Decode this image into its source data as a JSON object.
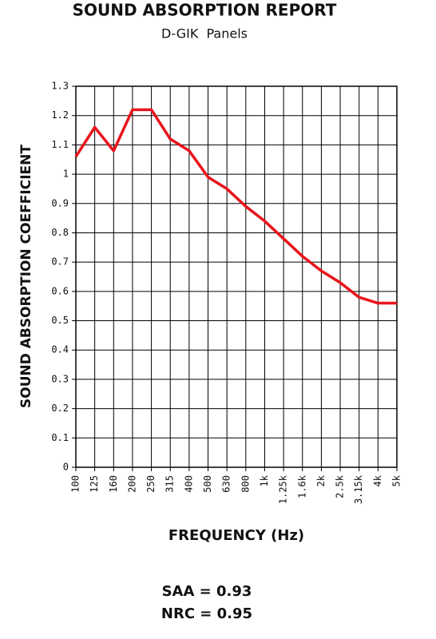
{
  "chart_data": {
    "type": "line",
    "title": "SOUND ABSORPTION REPORT",
    "subtitle": "D-GIK  Panels",
    "x_label": "FREQUENCY (Hz)",
    "y_label": "SOUND ABSORPTION COEFFICIENT",
    "categories": [
      "100",
      "125",
      "160",
      "200",
      "250",
      "315",
      "400",
      "500",
      "630",
      "800",
      "1k",
      "1.25k",
      "1.6k",
      "2k",
      "2.5k",
      "3.15k",
      "4k",
      "5k"
    ],
    "values": [
      1.06,
      1.16,
      1.08,
      1.22,
      1.22,
      1.12,
      1.08,
      0.99,
      0.95,
      0.89,
      0.84,
      0.78,
      0.72,
      0.67,
      0.63,
      0.58,
      0.56,
      0.56
    ],
    "color": "#e8141c",
    "ylim": [
      0,
      1.3
    ],
    "yticks": [
      0,
      0.1,
      0.2,
      0.3,
      0.4,
      0.5,
      0.6,
      0.7,
      0.8,
      0.9,
      1,
      1.1,
      1.2,
      1.3
    ],
    "grid": true,
    "annotations": [
      "SAA = 0.93",
      "NRC = 0.95"
    ]
  }
}
